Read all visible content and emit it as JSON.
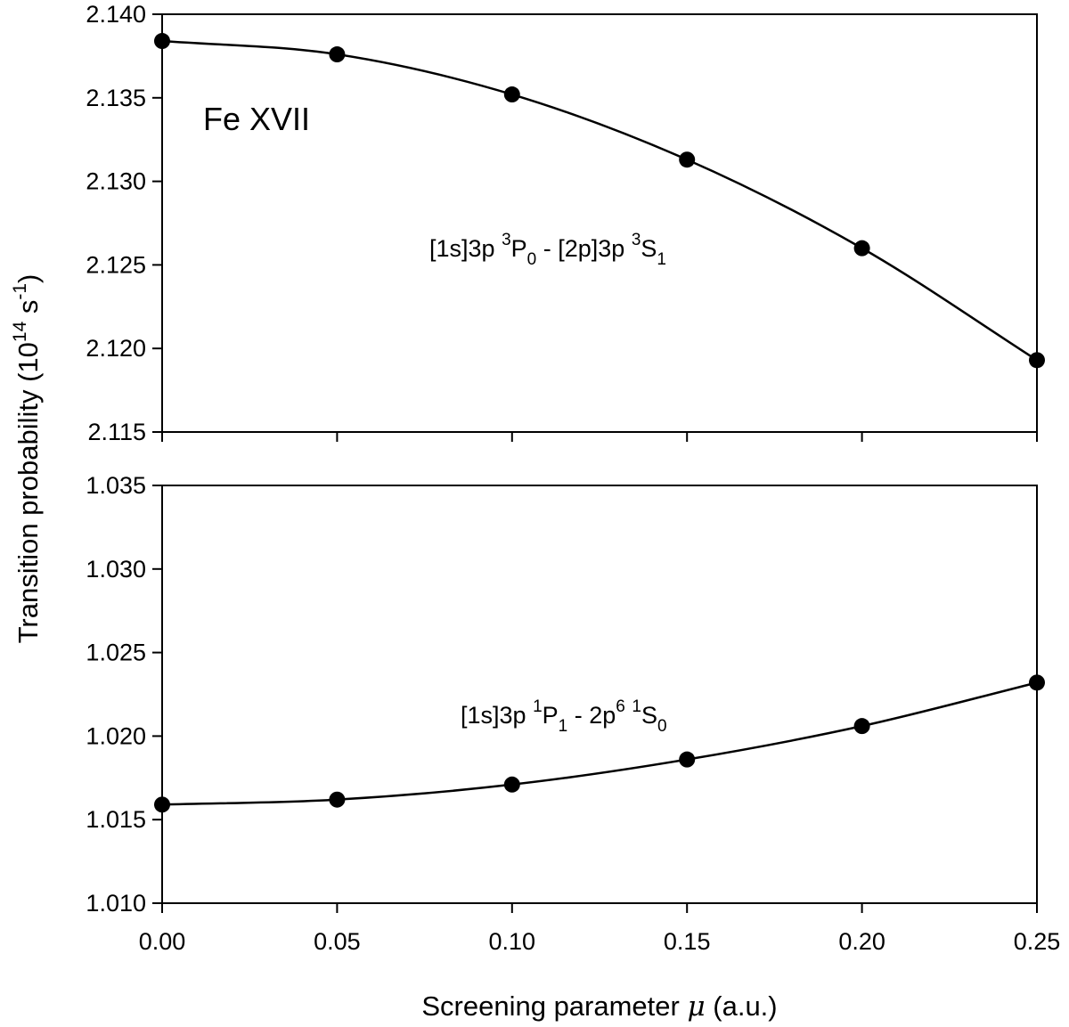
{
  "chart_data": {
    "type": "line",
    "x_label_prefix": "Screening parameter",
    "x_label_symbol": "μ",
    "x_label_suffix": "(a.u.)",
    "y_label_main": "Transition probability (10",
    "y_label_exp1": "14",
    "y_label_mid": " s",
    "y_label_exp2": "-1",
    "y_label_end": ")",
    "xlim": [
      0.0,
      0.25
    ],
    "x_ticks": [
      "0.00",
      "0.05",
      "0.10",
      "0.15",
      "0.20",
      "0.25"
    ],
    "x": [
      0.0,
      0.05,
      0.1,
      0.15,
      0.2,
      0.25
    ],
    "grid": false,
    "panel_label": "Fe XVII",
    "panels": [
      {
        "position": "top",
        "ylim": [
          2.115,
          2.14
        ],
        "y_ticks": [
          "2.115",
          "2.120",
          "2.125",
          "2.130",
          "2.135",
          "2.140"
        ],
        "values": [
          2.1384,
          2.1376,
          2.1352,
          2.1313,
          2.126,
          2.1193
        ],
        "annotation": {
          "p1": "[1s]3p ",
          "s1": "3",
          "p2": "P",
          "b1": "0",
          "p3": " - [2p]3p ",
          "s2": "3",
          "p4": "S",
          "b2": "1"
        }
      },
      {
        "position": "bottom",
        "ylim": [
          1.01,
          1.035
        ],
        "y_ticks": [
          "1.010",
          "1.015",
          "1.020",
          "1.025",
          "1.030",
          "1.035"
        ],
        "values": [
          1.0159,
          1.0162,
          1.0171,
          1.0186,
          1.0206,
          1.0232
        ],
        "annotation": {
          "p1": "[1s]3p ",
          "s1": "1",
          "p2": "P",
          "b1": "1",
          "p3": " - 2p",
          "s2": "6",
          "p4": " ",
          "s3": "1",
          "p5": "S",
          "b2": "0"
        }
      }
    ]
  }
}
